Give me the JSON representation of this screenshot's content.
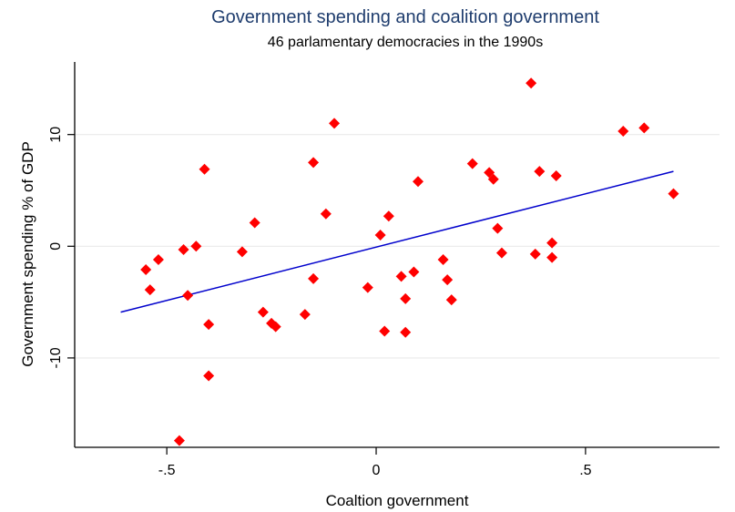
{
  "chart_data": {
    "type": "scatter",
    "title": "Government spending and coalition government",
    "subtitle": "46 parlamentary democracies in the 1990s",
    "xlabel": "Coaltion government",
    "ylabel": "Government spending % of GDP",
    "xlim": [
      -0.72,
      0.82
    ],
    "ylim": [
      -18.0,
      16.5
    ],
    "x_ticks": [
      -0.5,
      0,
      0.5
    ],
    "x_tick_labels": [
      "-.5",
      "0",
      ".5"
    ],
    "y_ticks": [
      -10,
      0,
      10
    ],
    "y_tick_labels": [
      "-10",
      "0",
      "10"
    ],
    "grid": "horizontal",
    "colors": {
      "title": "#1f3d6e",
      "points": "#ff0000",
      "fit_line": "#0000cc",
      "grid": "#eaeaea",
      "axis": "#000000"
    },
    "points": [
      {
        "x": -0.55,
        "y": -2.1
      },
      {
        "x": -0.54,
        "y": -3.9
      },
      {
        "x": -0.52,
        "y": -1.2
      },
      {
        "x": -0.47,
        "y": -17.4
      },
      {
        "x": -0.46,
        "y": -0.3
      },
      {
        "x": -0.45,
        "y": -4.4
      },
      {
        "x": -0.43,
        "y": 0.0
      },
      {
        "x": -0.41,
        "y": 6.9
      },
      {
        "x": -0.4,
        "y": -7.0
      },
      {
        "x": -0.4,
        "y": -11.6
      },
      {
        "x": -0.32,
        "y": -0.5
      },
      {
        "x": -0.29,
        "y": 2.1
      },
      {
        "x": -0.27,
        "y": -5.9
      },
      {
        "x": -0.25,
        "y": -6.9
      },
      {
        "x": -0.24,
        "y": -7.2
      },
      {
        "x": -0.17,
        "y": -6.1
      },
      {
        "x": -0.15,
        "y": -2.9
      },
      {
        "x": -0.15,
        "y": 7.5
      },
      {
        "x": -0.12,
        "y": 2.9
      },
      {
        "x": -0.1,
        "y": 11.0
      },
      {
        "x": -0.02,
        "y": -3.7
      },
      {
        "x": 0.01,
        "y": 1.0
      },
      {
        "x": 0.02,
        "y": -7.6
      },
      {
        "x": 0.03,
        "y": 2.7
      },
      {
        "x": 0.06,
        "y": -2.7
      },
      {
        "x": 0.07,
        "y": -4.7
      },
      {
        "x": 0.07,
        "y": -7.7
      },
      {
        "x": 0.09,
        "y": -2.3
      },
      {
        "x": 0.1,
        "y": 5.8
      },
      {
        "x": 0.16,
        "y": -1.2
      },
      {
        "x": 0.17,
        "y": -3.0
      },
      {
        "x": 0.18,
        "y": -4.8
      },
      {
        "x": 0.23,
        "y": 7.4
      },
      {
        "x": 0.27,
        "y": 6.6
      },
      {
        "x": 0.28,
        "y": 6.0
      },
      {
        "x": 0.29,
        "y": 1.6
      },
      {
        "x": 0.3,
        "y": -0.6
      },
      {
        "x": 0.37,
        "y": 14.6
      },
      {
        "x": 0.38,
        "y": -0.7
      },
      {
        "x": 0.39,
        "y": 6.7
      },
      {
        "x": 0.42,
        "y": 0.3
      },
      {
        "x": 0.42,
        "y": -1.0
      },
      {
        "x": 0.43,
        "y": 6.3
      },
      {
        "x": 0.59,
        "y": 10.3
      },
      {
        "x": 0.64,
        "y": 10.6
      },
      {
        "x": 0.71,
        "y": 4.7
      }
    ],
    "fit_line": {
      "x": [
        -0.61,
        0.71
      ],
      "y": [
        -5.9,
        6.7
      ]
    }
  }
}
